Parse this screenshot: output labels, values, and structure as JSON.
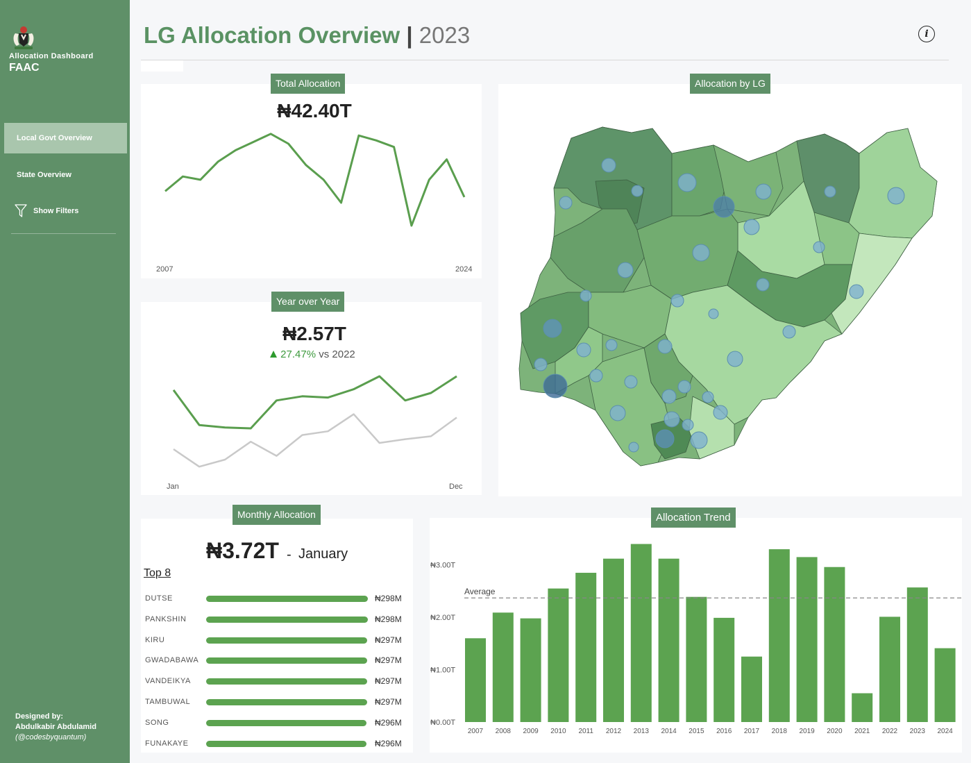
{
  "sidebar": {
    "brand_sub": "Allocation Dashboard",
    "brand_main": "FAAC",
    "nav": [
      {
        "label": "Local Govt Overview",
        "active": true
      },
      {
        "label": "State Overview",
        "active": false
      },
      {
        "label": "Show Filters",
        "icon": "filter-icon",
        "active": false
      }
    ],
    "designed_by_label": "Designed by:",
    "designer_name": "Abdulkabir Abdulamid",
    "designer_handle": "(@codesbyquantum)"
  },
  "header": {
    "title": "LG Allocation Overview",
    "separator": "|",
    "year": "2023",
    "info_icon": "info-icon"
  },
  "colors": {
    "sidebar": "#5f9068",
    "accent_green": "#5ca350",
    "line_green": "#5a9e4e",
    "prior_gray": "#c9c9c9",
    "bubble": "#7fb2d0"
  },
  "total_allocation": {
    "label": "Total Allocation",
    "value": "₦42.40T",
    "x_start": "2007",
    "x_end": "2024"
  },
  "year_over_year": {
    "label": "Year over Year",
    "value": "₦2.57T",
    "change_icon": "triangle-up-icon",
    "change_pct": "27.47%",
    "change_vs": "vs 2022",
    "x_start": "Jan",
    "x_end": "Dec"
  },
  "map": {
    "label": "Allocation by LG"
  },
  "monthly_allocation": {
    "label": "Monthly Allocation",
    "value": "₦3.72T",
    "dash": "-",
    "month": "January",
    "top_label": "Top 8",
    "lgs": [
      {
        "name": "DUTSE",
        "value": "₦298M",
        "amount": 298
      },
      {
        "name": "PANKSHIN",
        "value": "₦298M",
        "amount": 298
      },
      {
        "name": "KIRU",
        "value": "₦297M",
        "amount": 297
      },
      {
        "name": "GWADABAWA",
        "value": "₦297M",
        "amount": 297
      },
      {
        "name": "VANDEIKYA",
        "value": "₦297M",
        "amount": 297
      },
      {
        "name": "TAMBUWAL",
        "value": "₦297M",
        "amount": 297
      },
      {
        "name": "SONG",
        "value": "₦296M",
        "amount": 296
      },
      {
        "name": "FUNAKAYE",
        "value": "₦296M",
        "amount": 296
      }
    ]
  },
  "allocation_trend": {
    "label": "Allocation Trend",
    "average_label": "Average"
  },
  "chart_data": [
    {
      "type": "line",
      "x": [
        2007,
        2008,
        2009,
        2010,
        2011,
        2012,
        2013,
        2014,
        2015,
        2016,
        2017,
        2018,
        2019,
        2020,
        2021,
        2022,
        2023,
        2024
      ],
      "series": [
        {
          "values": [
            1.6,
            2.05,
            1.95,
            2.5,
            2.85,
            3.1,
            3.35,
            3.05,
            2.4,
            1.95,
            1.25,
            3.3,
            3.15,
            2.95,
            0.55,
            1.95,
            2.57,
            1.42
          ]
        }
      ],
      "ylim": [
        0,
        3.6
      ]
    },
    {
      "type": "line",
      "x": [
        "Jan",
        "Feb",
        "Mar",
        "Apr",
        "May",
        "Jun",
        "Jul",
        "Aug",
        "Sep",
        "Oct",
        "Nov",
        "Dec"
      ],
      "series": [
        {
          "values": [
            3.72,
            2.88,
            2.82,
            2.8,
            3.47,
            3.57,
            3.54,
            3.74,
            4.05,
            3.47,
            3.65,
            4.05
          ]
        },
        {
          "values": [
            2.3,
            1.88,
            2.05,
            2.48,
            2.14,
            2.64,
            2.73,
            3.14,
            2.45,
            2.54,
            2.61,
            3.06
          ]
        }
      ],
      "ylim": [
        1.5,
        4.5
      ]
    },
    {
      "type": "bar",
      "title": "Allocation Trend",
      "categories": [
        "2007",
        "2008",
        "2009",
        "2010",
        "2011",
        "2012",
        "2013",
        "2014",
        "2015",
        "2016",
        "2017",
        "2018",
        "2019",
        "2020",
        "2021",
        "2022",
        "2023",
        "2024"
      ],
      "values": [
        1.6,
        2.09,
        1.98,
        2.55,
        2.85,
        3.12,
        3.4,
        3.12,
        2.39,
        1.99,
        1.25,
        3.3,
        3.15,
        2.96,
        0.55,
        2.01,
        2.57,
        1.41
      ],
      "average": 2.37,
      "yticks": [
        "₦0.00T",
        "₦1.00T",
        "₦2.00T",
        "₦3.00T"
      ],
      "ylim": [
        0,
        3.5
      ]
    }
  ]
}
